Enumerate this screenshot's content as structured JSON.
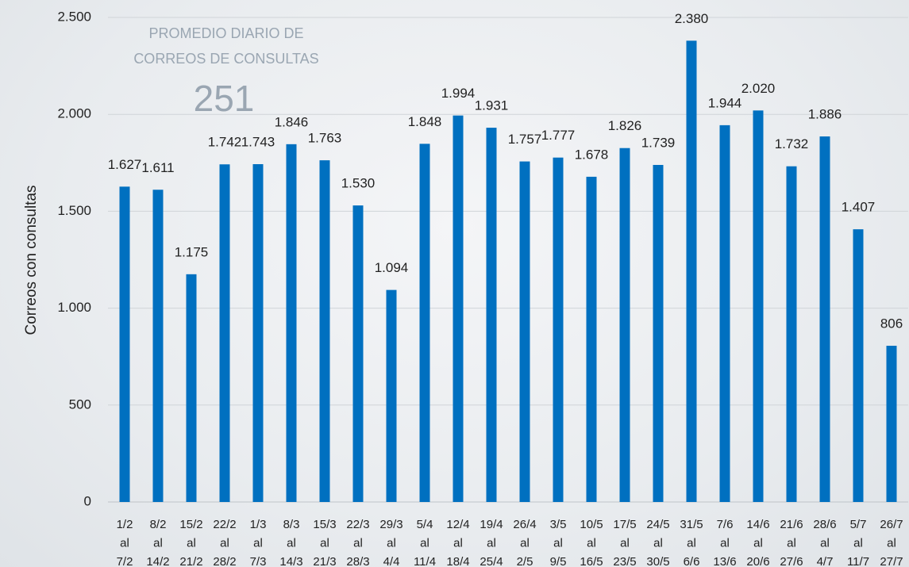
{
  "chart_data": {
    "type": "bar",
    "ylabel": "Correos con consultas",
    "annotation": {
      "lines": [
        "PROMEDIO DIARIO DE",
        "CORREOS DE CONSULTAS"
      ],
      "value": "251"
    },
    "categories": [
      [
        "1/2",
        "al",
        "7/2"
      ],
      [
        "8/2",
        "al",
        "14/2"
      ],
      [
        "15/2",
        "al",
        "21/2"
      ],
      [
        "22/2",
        "al",
        "28/2"
      ],
      [
        "1/3",
        "al",
        "7/3"
      ],
      [
        "8/3",
        "al",
        "14/3"
      ],
      [
        "15/3",
        "al",
        "21/3"
      ],
      [
        "22/3",
        "al",
        "28/3"
      ],
      [
        "29/3",
        "al",
        "4/4"
      ],
      [
        "5/4",
        "al",
        "11/4"
      ],
      [
        "12/4",
        "al",
        "18/4"
      ],
      [
        "19/4",
        "al",
        "25/4"
      ],
      [
        "26/4",
        "al",
        "2/5"
      ],
      [
        "3/5",
        "al",
        "9/5"
      ],
      [
        "10/5",
        "al",
        "16/5"
      ],
      [
        "17/5",
        "al",
        "23/5"
      ],
      [
        "24/5",
        "al",
        "30/5"
      ],
      [
        "31/5",
        "al",
        "6/6"
      ],
      [
        "7/6",
        "al",
        "13/6"
      ],
      [
        "14/6",
        "al",
        "20/6"
      ],
      [
        "21/6",
        "al",
        "27/6"
      ],
      [
        "28/6",
        "al",
        "4/7"
      ],
      [
        "5/7",
        "al",
        "11/7"
      ],
      [
        "26/7",
        "al",
        "27/7"
      ]
    ],
    "values": [
      1627,
      1611,
      1175,
      1742,
      1743,
      1846,
      1763,
      1530,
      1094,
      1848,
      1994,
      1931,
      1757,
      1777,
      1678,
      1826,
      1739,
      2380,
      1944,
      2020,
      1732,
      1886,
      1407,
      806
    ],
    "value_labels": [
      "1.627",
      "1.611",
      "1.175",
      "1.742",
      "1.743",
      "1.846",
      "1.763",
      "1.530",
      "1.094",
      "1.848",
      "1.994",
      "1.931",
      "1.757",
      "1.777",
      "1.678",
      "1.826",
      "1.739",
      "2.380",
      "1.944",
      "2.020",
      "1.732",
      "1.886",
      "1.407",
      "806"
    ],
    "color": "#0070c0",
    "ylim": [
      0,
      2500
    ],
    "yticks": [
      0,
      500,
      {
        "value": 1000,
        "label": "1.000"
      },
      {
        "value": 1500,
        "label": "1.500"
      },
      {
        "value": 2000,
        "label": "2.000"
      },
      {
        "value": 2500,
        "label": "2.500"
      }
    ],
    "grid": true
  }
}
